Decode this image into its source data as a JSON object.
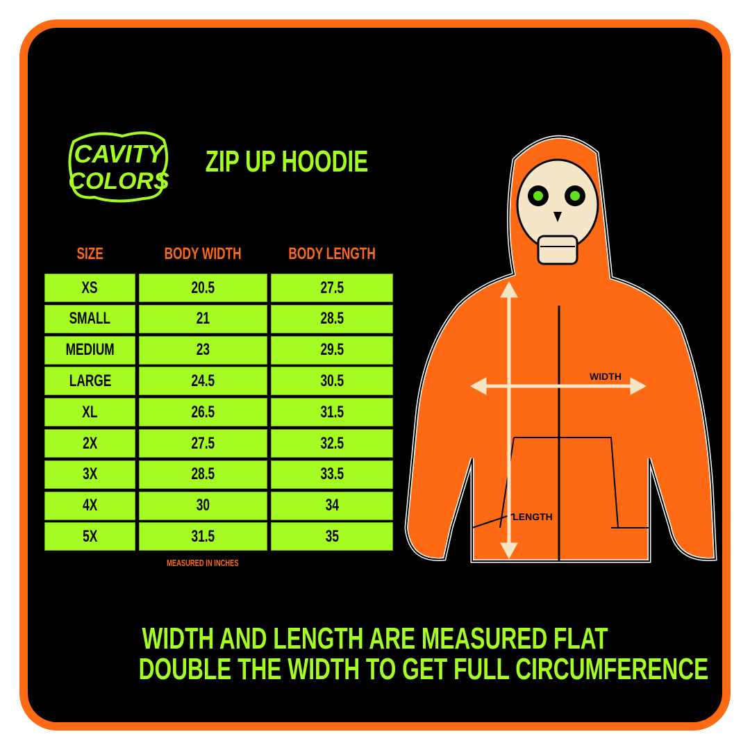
{
  "brand": {
    "logo_text": "CAVITY COLORS"
  },
  "title": "ZIP UP HOODIE",
  "table": {
    "headers": [
      "SIZE",
      "BODY WIDTH",
      "BODY LENGTH"
    ],
    "rows": [
      [
        "XS",
        "20.5",
        "27.5"
      ],
      [
        "SMALL",
        "21",
        "28.5"
      ],
      [
        "MEDIUM",
        "23",
        "29.5"
      ],
      [
        "LARGE",
        "24.5",
        "30.5"
      ],
      [
        "XL",
        "26.5",
        "31.5"
      ],
      [
        "2X",
        "27.5",
        "32.5"
      ],
      [
        "3X",
        "28.5",
        "33.5"
      ],
      [
        "4X",
        "30",
        "34"
      ],
      [
        "5X",
        "31.5",
        "35"
      ]
    ],
    "note": "MEASURED IN INCHES"
  },
  "diagram": {
    "width_label": "WIDTH",
    "length_label": "LENGTH"
  },
  "footer": {
    "line1": "WIDTH AND LENGTH ARE MEASURED FLAT",
    "line2": "DOUBLE THE WIDTH TO GET FULL CIRCUMFERENCE"
  },
  "colors": {
    "accent_green": "#a4fc22",
    "accent_orange": "#fe6a14",
    "background": "#000000"
  }
}
